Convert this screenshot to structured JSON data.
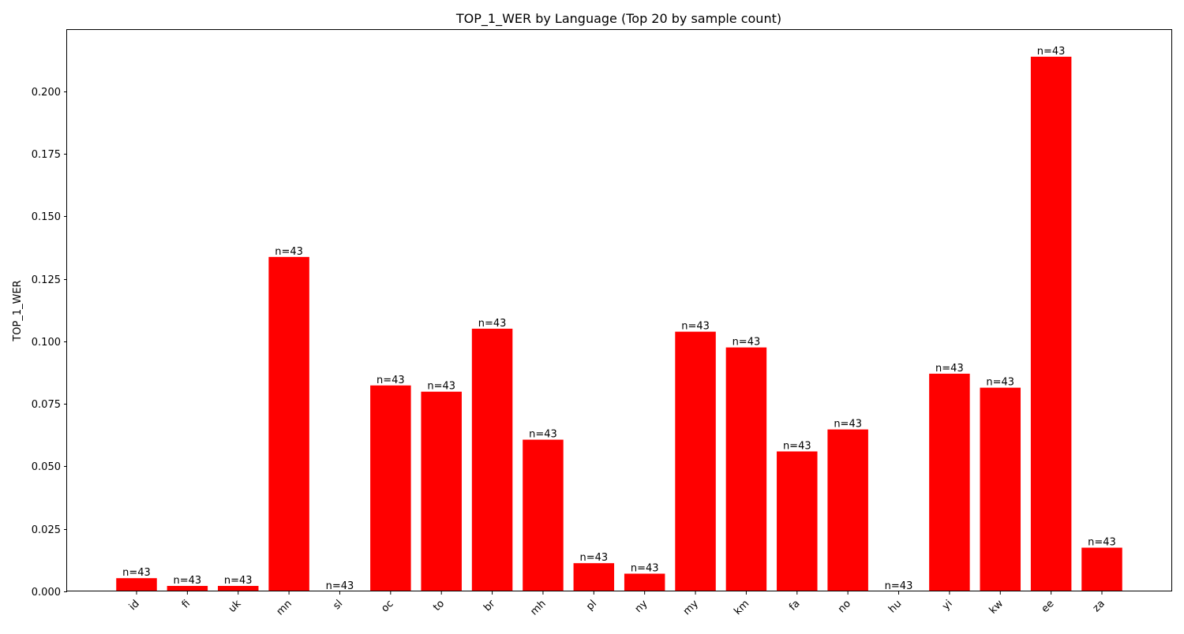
{
  "chart_data": {
    "type": "bar",
    "title": "TOP_1_WER by Language (Top 20 by sample count)",
    "xlabel": "",
    "ylabel": "TOP_1_WER",
    "categories": [
      "id",
      "fi",
      "uk",
      "mn",
      "sl",
      "oc",
      "to",
      "br",
      "mh",
      "pl",
      "ny",
      "my",
      "km",
      "fa",
      "no",
      "hu",
      "yi",
      "kw",
      "ee",
      "za"
    ],
    "values": [
      0.0053,
      0.0022,
      0.0022,
      0.1338,
      0.0,
      0.0824,
      0.0799,
      0.1051,
      0.0607,
      0.0113,
      0.0071,
      0.1039,
      0.0976,
      0.056,
      0.0648,
      0.0,
      0.0871,
      0.0815,
      0.2139,
      0.0175
    ],
    "bar_labels": [
      "n=43",
      "n=43",
      "n=43",
      "n=43",
      "n=43",
      "n=43",
      "n=43",
      "n=43",
      "n=43",
      "n=43",
      "n=43",
      "n=43",
      "n=43",
      "n=43",
      "n=43",
      "n=43",
      "n=43",
      "n=43",
      "n=43",
      "n=43"
    ],
    "yticks": [
      0.0,
      0.025,
      0.05,
      0.075,
      0.1,
      0.125,
      0.15,
      0.175,
      0.2
    ],
    "ytick_labels": [
      "0.000",
      "0.025",
      "0.050",
      "0.075",
      "0.100",
      "0.125",
      "0.150",
      "0.175",
      "0.200"
    ],
    "ylim": [
      0,
      0.2246
    ],
    "bar_color": "#ff0000",
    "grid": false,
    "legend": "none"
  }
}
